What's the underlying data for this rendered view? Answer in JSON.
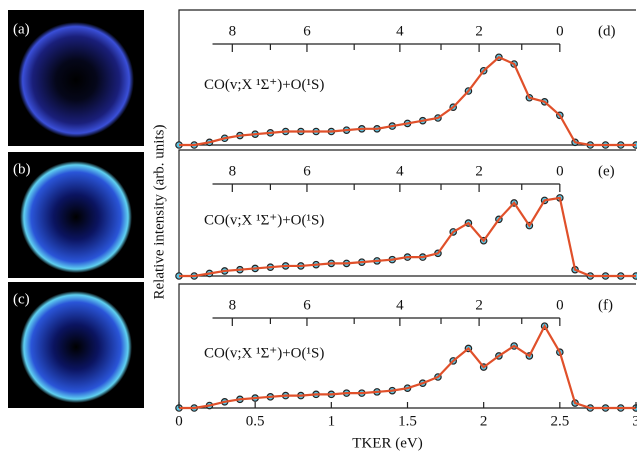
{
  "images": [
    {
      "label": "(a)"
    },
    {
      "label": "(b)"
    },
    {
      "label": "(c)"
    }
  ],
  "chart_data": [
    {
      "type": "line",
      "panel_label": "(d)",
      "annotation": "CO(v;X ¹Σ⁺)+O(¹S)",
      "xlim": [
        0,
        3
      ],
      "ylim": [
        0,
        1
      ],
      "comb": {
        "xlim": [
          0.22,
          2.5
        ],
        "ticks": [
          {
            "value": 0.35,
            "label": "8"
          },
          {
            "value": 0.84,
            "label": "6"
          },
          {
            "value": 1.45,
            "label": "4"
          },
          {
            "value": 1.97,
            "label": "2"
          },
          {
            "value": 2.5,
            "label": "0"
          }
        ],
        "minor": [
          0.6,
          1.15,
          1.72,
          2.25
        ]
      },
      "x": [
        0,
        0.1,
        0.2,
        0.3,
        0.4,
        0.5,
        0.6,
        0.7,
        0.8,
        0.9,
        1.0,
        1.1,
        1.2,
        1.3,
        1.4,
        1.5,
        1.6,
        1.7,
        1.8,
        1.9,
        2.0,
        2.1,
        2.2,
        2.3,
        2.4,
        2.5,
        2.6,
        2.7,
        2.8,
        2.9,
        3.0
      ],
      "series": [
        {
          "color": "#e0502a",
          "marker_color": "#5fc3e0",
          "values": [
            0,
            0,
            0.02,
            0.05,
            0.07,
            0.08,
            0.09,
            0.1,
            0.1,
            0.1,
            0.1,
            0.11,
            0.12,
            0.12,
            0.14,
            0.16,
            0.18,
            0.2,
            0.28,
            0.4,
            0.55,
            0.65,
            0.6,
            0.35,
            0.32,
            0.22,
            0.02,
            0,
            0,
            0,
            0
          ]
        }
      ]
    },
    {
      "type": "line",
      "panel_label": "(e)",
      "annotation": "CO(v;X ¹Σ⁺)+O(¹S)",
      "ylabel": "Relative intensity (arb. units)",
      "xlim": [
        0,
        3
      ],
      "ylim": [
        0,
        1
      ],
      "comb": {
        "xlim": [
          0.22,
          2.5
        ],
        "ticks": [
          {
            "value": 0.35,
            "label": "8"
          },
          {
            "value": 0.84,
            "label": "6"
          },
          {
            "value": 1.45,
            "label": "4"
          },
          {
            "value": 1.97,
            "label": "2"
          },
          {
            "value": 2.5,
            "label": "0"
          }
        ],
        "minor": [
          0.6,
          1.15,
          1.72,
          2.25
        ]
      },
      "x": [
        0,
        0.1,
        0.2,
        0.3,
        0.4,
        0.5,
        0.6,
        0.7,
        0.8,
        0.9,
        1.0,
        1.1,
        1.2,
        1.3,
        1.4,
        1.5,
        1.6,
        1.7,
        1.8,
        1.9,
        2.0,
        2.1,
        2.2,
        2.3,
        2.4,
        2.5,
        2.6,
        2.7,
        2.8,
        2.9,
        3.0
      ],
      "series": [
        {
          "color": "#e0502a",
          "marker_color": "#5fc3e0",
          "values": [
            0,
            0,
            0.02,
            0.04,
            0.05,
            0.06,
            0.07,
            0.08,
            0.08,
            0.09,
            0.1,
            0.1,
            0.11,
            0.12,
            0.13,
            0.15,
            0.15,
            0.18,
            0.35,
            0.42,
            0.28,
            0.45,
            0.58,
            0.4,
            0.6,
            0.62,
            0.05,
            0,
            0,
            0,
            0
          ]
        }
      ]
    },
    {
      "type": "line",
      "panel_label": "(f)",
      "annotation": "CO(v;X ¹Σ⁺)+O(¹S)",
      "xlabel": "TKER (eV)",
      "xlim": [
        0,
        3
      ],
      "ylim": [
        0,
        1
      ],
      "xticks": [
        0,
        0.5,
        1,
        1.5,
        2,
        2.5,
        3
      ],
      "comb": {
        "xlim": [
          0.22,
          2.5
        ],
        "ticks": [
          {
            "value": 0.35,
            "label": "8"
          },
          {
            "value": 0.84,
            "label": "6"
          },
          {
            "value": 1.45,
            "label": "4"
          },
          {
            "value": 1.97,
            "label": "2"
          },
          {
            "value": 2.5,
            "label": "0"
          }
        ],
        "minor": [
          0.6,
          1.15,
          1.72,
          2.25
        ]
      },
      "x": [
        0,
        0.1,
        0.2,
        0.3,
        0.4,
        0.5,
        0.6,
        0.7,
        0.8,
        0.9,
        1.0,
        1.1,
        1.2,
        1.3,
        1.4,
        1.5,
        1.6,
        1.7,
        1.8,
        1.9,
        2.0,
        2.1,
        2.2,
        2.3,
        2.4,
        2.5,
        2.6,
        2.7,
        2.8,
        2.9,
        3.0
      ],
      "series": [
        {
          "color": "#e0502a",
          "marker_color": "#5fc3e0",
          "values": [
            0,
            0,
            0.02,
            0.05,
            0.07,
            0.08,
            0.09,
            0.1,
            0.1,
            0.11,
            0.11,
            0.12,
            0.12,
            0.13,
            0.14,
            0.16,
            0.2,
            0.25,
            0.38,
            0.48,
            0.33,
            0.42,
            0.5,
            0.42,
            0.66,
            0.45,
            0.04,
            0,
            0,
            0,
            0
          ]
        }
      ]
    }
  ]
}
